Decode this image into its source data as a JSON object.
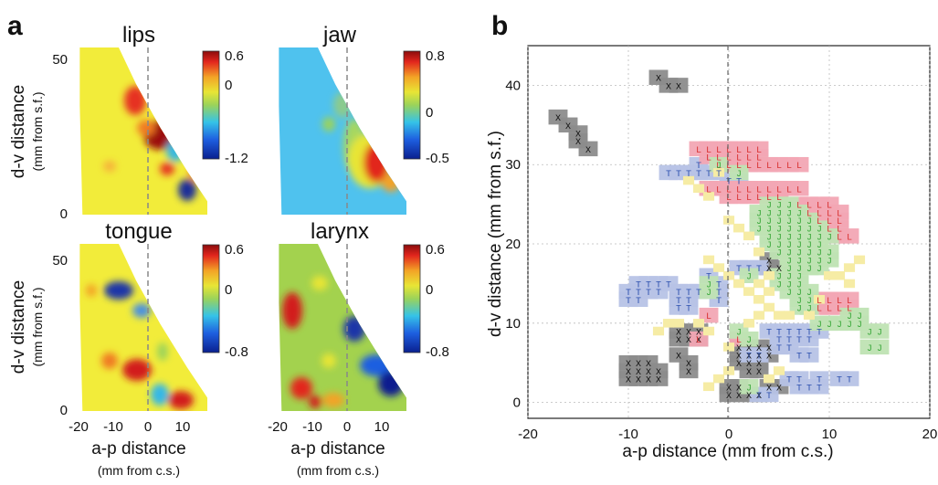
{
  "figure": {
    "panel_a_letter": "a",
    "panel_b_letter": "b"
  },
  "panel_a": {
    "maps": [
      {
        "title": "lips",
        "title_color": "#e8262e",
        "cbar_ticks": [
          "0.6",
          "0",
          "-1.2"
        ]
      },
      {
        "title": "jaw",
        "title_color": "#3fb548",
        "cbar_ticks": [
          "0.8",
          "0",
          "-0.5"
        ]
      },
      {
        "title": "tongue",
        "title_color": "#2f4da8",
        "cbar_ticks": [
          "0.6",
          "0",
          "-0.8"
        ]
      },
      {
        "title": "larynx",
        "title_color": "#111111",
        "cbar_ticks": [
          "0.6",
          "0",
          "-0.8"
        ]
      }
    ],
    "y_label": "d-v distance",
    "y_sublabel": "(mm from s.f.)",
    "y_ticks": [
      "50",
      "0"
    ],
    "x_label": "a-p distance",
    "x_sublabel": "(mm from c.s.)",
    "x_ticks": [
      "-20",
      "-10",
      "0",
      "10"
    ]
  },
  "chart_data": {
    "type": "scatter",
    "xlabel": "a-p distance (mm from c.s.)",
    "ylabel": "d-v distance (mm from s.f.)",
    "xlim": [
      -20,
      20
    ],
    "ylim": [
      -2,
      45
    ],
    "xticks": [
      "-20",
      "-10",
      "0",
      "10",
      "20"
    ],
    "yticks": [
      "0",
      "10",
      "20",
      "30",
      "40"
    ],
    "grid": true,
    "region_colors": {
      "lips": "#f2a7b4",
      "jaw": "#bfe3b3",
      "tongue": "#b7c3e6",
      "larynx": "#8c8c8c",
      "mixed": "#f6eca5"
    },
    "letter_colors": {
      "L": "#d93232",
      "J": "#3aa83a",
      "T": "#2f52b0",
      "X": "#111111"
    },
    "series": [
      {
        "marker": "X",
        "points": [
          [
            -17,
            36
          ],
          [
            -16,
            35
          ],
          [
            -15,
            34
          ],
          [
            -15,
            33
          ],
          [
            -14,
            32
          ],
          [
            -7,
            41
          ],
          [
            -6,
            40
          ],
          [
            -5,
            40
          ],
          [
            -10,
            5
          ],
          [
            -9,
            5
          ],
          [
            -8,
            5
          ],
          [
            -10,
            4
          ],
          [
            -9,
            4
          ],
          [
            -8,
            4
          ],
          [
            -7,
            4
          ],
          [
            -10,
            3
          ],
          [
            -9,
            3
          ],
          [
            -8,
            3
          ],
          [
            -7,
            3
          ],
          [
            -5,
            6
          ],
          [
            -4,
            5
          ],
          [
            -4,
            4
          ],
          [
            -5,
            8
          ],
          [
            -4,
            8
          ],
          [
            -3,
            8
          ],
          [
            -5,
            9
          ],
          [
            -4,
            9
          ],
          [
            -3,
            9
          ],
          [
            1,
            7
          ],
          [
            2,
            7
          ],
          [
            3,
            7
          ],
          [
            4,
            7
          ],
          [
            1,
            6
          ],
          [
            2,
            6
          ],
          [
            3,
            6
          ],
          [
            4,
            6
          ],
          [
            1,
            5
          ],
          [
            2,
            5
          ],
          [
            3,
            5
          ],
          [
            2,
            4
          ],
          [
            3,
            4
          ],
          [
            0,
            2
          ],
          [
            1,
            2
          ],
          [
            0,
            1
          ],
          [
            1,
            1
          ],
          [
            2,
            1
          ],
          [
            3,
            1
          ],
          [
            4,
            2
          ],
          [
            5,
            2
          ],
          [
            4,
            18
          ],
          [
            4,
            17
          ],
          [
            5,
            17
          ]
        ]
      },
      {
        "marker": "T",
        "points": [
          [
            -6,
            29
          ],
          [
            -5,
            29
          ],
          [
            -4,
            29
          ],
          [
            -3,
            29
          ],
          [
            -2,
            29
          ],
          [
            -1,
            29
          ],
          [
            0,
            28
          ],
          [
            1,
            28
          ],
          [
            -3,
            30
          ],
          [
            -9,
            15
          ],
          [
            -8,
            15
          ],
          [
            -7,
            15
          ],
          [
            -6,
            15
          ],
          [
            -10,
            14
          ],
          [
            -9,
            14
          ],
          [
            -8,
            14
          ],
          [
            -7,
            14
          ],
          [
            -10,
            13
          ],
          [
            -9,
            13
          ],
          [
            -5,
            14
          ],
          [
            -4,
            14
          ],
          [
            -3,
            14
          ],
          [
            -5,
            13
          ],
          [
            -4,
            13
          ],
          [
            -2,
            16
          ],
          [
            -5,
            12
          ],
          [
            -4,
            12
          ],
          [
            -1,
            15
          ],
          [
            -1,
            14
          ],
          [
            -1,
            13
          ],
          [
            1,
            17
          ],
          [
            2,
            17
          ],
          [
            3,
            17
          ],
          [
            4,
            9
          ],
          [
            5,
            9
          ],
          [
            6,
            9
          ],
          [
            7,
            9
          ],
          [
            8,
            9
          ],
          [
            9,
            9
          ],
          [
            5,
            8
          ],
          [
            6,
            8
          ],
          [
            7,
            8
          ],
          [
            8,
            8
          ],
          [
            2,
            6
          ],
          [
            3,
            6
          ],
          [
            5,
            7
          ],
          [
            6,
            7
          ],
          [
            7,
            6
          ],
          [
            8,
            6
          ],
          [
            6,
            3
          ],
          [
            7,
            3
          ],
          [
            7,
            2
          ],
          [
            8,
            2
          ],
          [
            9,
            2
          ],
          [
            9,
            3
          ],
          [
            11,
            3
          ],
          [
            12,
            3
          ],
          [
            4,
            1
          ],
          [
            3,
            1
          ]
        ]
      },
      {
        "marker": "L",
        "points": [
          [
            -3,
            32
          ],
          [
            -2,
            32
          ],
          [
            -1,
            32
          ],
          [
            0,
            32
          ],
          [
            1,
            32
          ],
          [
            2,
            32
          ],
          [
            3,
            32
          ],
          [
            -2,
            31
          ],
          [
            -1,
            31
          ],
          [
            0,
            31
          ],
          [
            1,
            31
          ],
          [
            2,
            31
          ],
          [
            3,
            31
          ],
          [
            -1,
            30
          ],
          [
            0,
            30
          ],
          [
            1,
            30
          ],
          [
            2,
            30
          ],
          [
            3,
            30
          ],
          [
            4,
            30
          ],
          [
            5,
            30
          ],
          [
            6,
            30
          ],
          [
            7,
            30
          ],
          [
            -2,
            27
          ],
          [
            -1,
            27
          ],
          [
            0,
            27
          ],
          [
            1,
            27
          ],
          [
            2,
            27
          ],
          [
            3,
            27
          ],
          [
            4,
            27
          ],
          [
            5,
            27
          ],
          [
            6,
            27
          ],
          [
            7,
            27
          ],
          [
            0,
            26
          ],
          [
            1,
            26
          ],
          [
            2,
            26
          ],
          [
            3,
            26
          ],
          [
            4,
            26
          ],
          [
            5,
            26
          ],
          [
            7,
            25
          ],
          [
            8,
            25
          ],
          [
            9,
            25
          ],
          [
            10,
            25
          ],
          [
            8,
            24
          ],
          [
            9,
            24
          ],
          [
            10,
            24
          ],
          [
            11,
            24
          ],
          [
            9,
            23
          ],
          [
            10,
            23
          ],
          [
            11,
            23
          ],
          [
            10,
            22
          ],
          [
            11,
            22
          ],
          [
            11,
            21
          ],
          [
            12,
            21
          ],
          [
            9,
            13
          ],
          [
            10,
            13
          ],
          [
            11,
            13
          ],
          [
            12,
            13
          ],
          [
            9,
            12
          ],
          [
            10,
            12
          ],
          [
            11,
            12
          ],
          [
            12,
            12
          ],
          [
            -3,
            8
          ],
          [
            -2,
            11
          ],
          [
            1,
            8
          ]
        ]
      },
      {
        "marker": "J",
        "points": [
          [
            4,
            25
          ],
          [
            5,
            25
          ],
          [
            6,
            25
          ],
          [
            3,
            24
          ],
          [
            4,
            24
          ],
          [
            5,
            24
          ],
          [
            6,
            24
          ],
          [
            7,
            24
          ],
          [
            3,
            23
          ],
          [
            4,
            23
          ],
          [
            5,
            23
          ],
          [
            6,
            23
          ],
          [
            7,
            23
          ],
          [
            8,
            23
          ],
          [
            3,
            22
          ],
          [
            4,
            22
          ],
          [
            5,
            22
          ],
          [
            6,
            22
          ],
          [
            7,
            22
          ],
          [
            8,
            22
          ],
          [
            9,
            22
          ],
          [
            4,
            21
          ],
          [
            5,
            21
          ],
          [
            6,
            21
          ],
          [
            7,
            21
          ],
          [
            8,
            21
          ],
          [
            9,
            21
          ],
          [
            10,
            21
          ],
          [
            4,
            20
          ],
          [
            5,
            20
          ],
          [
            6,
            20
          ],
          [
            7,
            20
          ],
          [
            8,
            20
          ],
          [
            9,
            20
          ],
          [
            5,
            19
          ],
          [
            6,
            19
          ],
          [
            7,
            19
          ],
          [
            8,
            19
          ],
          [
            9,
            19
          ],
          [
            10,
            19
          ],
          [
            6,
            18
          ],
          [
            7,
            18
          ],
          [
            8,
            18
          ],
          [
            9,
            18
          ],
          [
            10,
            18
          ],
          [
            6,
            17
          ],
          [
            7,
            17
          ],
          [
            8,
            17
          ],
          [
            9,
            17
          ],
          [
            5,
            16
          ],
          [
            6,
            16
          ],
          [
            7,
            16
          ],
          [
            5,
            15
          ],
          [
            6,
            15
          ],
          [
            7,
            15
          ],
          [
            6,
            14
          ],
          [
            7,
            14
          ],
          [
            8,
            14
          ],
          [
            7,
            13
          ],
          [
            8,
            13
          ],
          [
            7,
            12
          ],
          [
            8,
            12
          ],
          [
            12,
            11
          ],
          [
            13,
            11
          ],
          [
            9,
            10
          ],
          [
            10,
            10
          ],
          [
            11,
            10
          ],
          [
            12,
            10
          ],
          [
            13,
            10
          ],
          [
            14,
            9
          ],
          [
            15,
            9
          ],
          [
            14,
            7
          ],
          [
            15,
            7
          ],
          [
            -2,
            15
          ],
          [
            -2,
            14
          ],
          [
            1,
            9
          ],
          [
            2,
            8
          ],
          [
            -1,
            30
          ],
          [
            1,
            29
          ],
          [
            2,
            16
          ],
          [
            2,
            2
          ]
        ]
      }
    ]
  }
}
